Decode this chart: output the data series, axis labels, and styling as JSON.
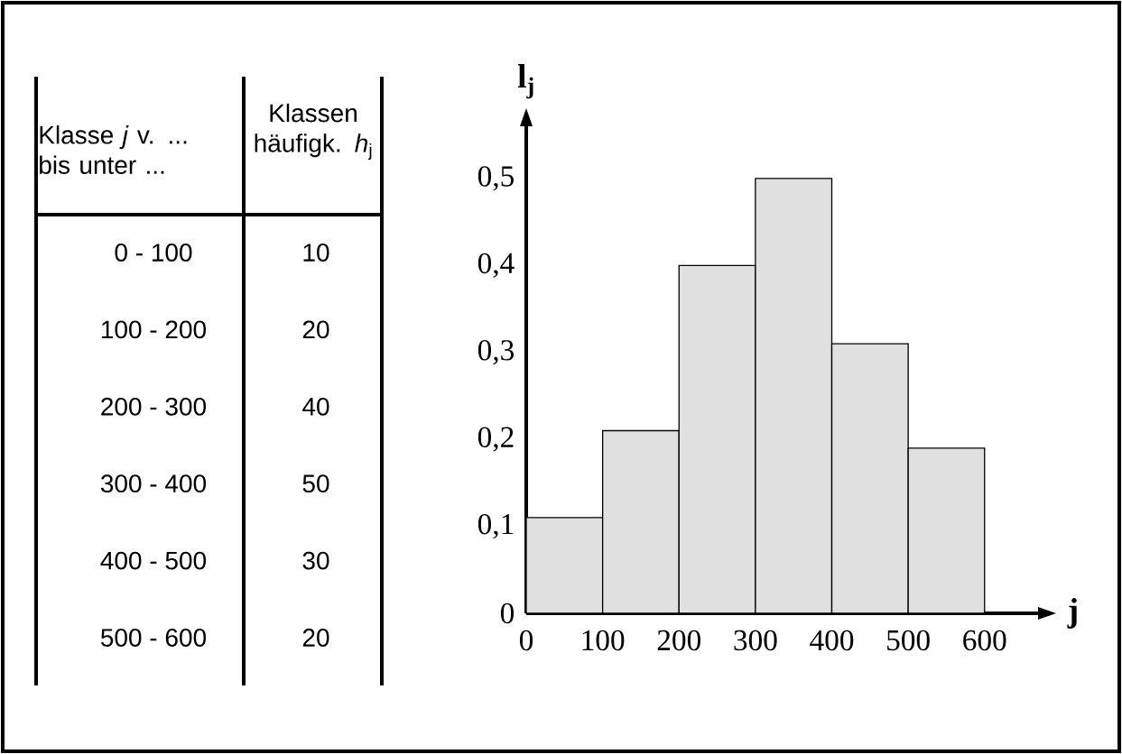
{
  "chart_data": [
    {
      "type": "other",
      "xlabel": "Klasse *j* v. ... bis unter ...",
      "ylabel": "Klassen häufigk. *h*$_{j}$",
      "categories": [
        "0 - 100",
        "100 - 200",
        "200 - 300",
        "300 - 400",
        "400 - 500",
        "500 - 600"
      ],
      "values": [
        10,
        20,
        40,
        50,
        30,
        20
      ],
      "data_labels": true
    },
    {
      "type": "histogram",
      "xlabel": "j",
      "ylabel": "l$_{j}$",
      "bins": [
        0,
        100,
        200,
        300,
        400,
        500,
        600
      ],
      "values": [
        0.11,
        0.21,
        0.4,
        0.5,
        0.31,
        0.19
      ],
      "color": "#e0e0e0",
      "xlim": [
        0,
        670
      ],
      "ylim": [
        0,
        0.56
      ],
      "xticks": [
        0,
        100,
        200,
        300,
        400,
        500,
        600
      ],
      "yticks": [
        0,
        {
          "value": 0.1,
          "label": "0,1"
        },
        {
          "value": 0.2,
          "label": "0,2"
        },
        {
          "value": 0.3,
          "label": "0,3"
        },
        {
          "value": 0.4,
          "label": "0,4"
        },
        {
          "value": 0.5,
          "label": "0,5"
        }
      ]
    }
  ]
}
